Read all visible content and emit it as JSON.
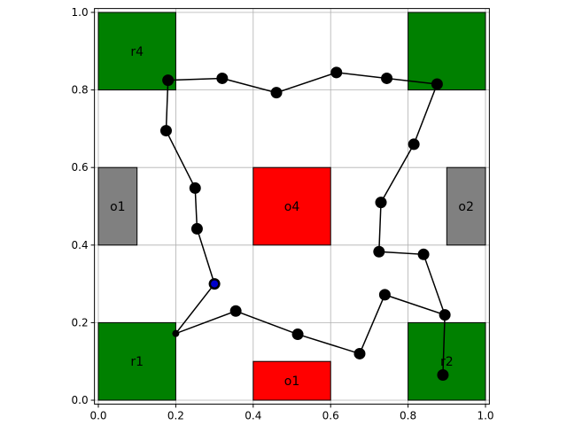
{
  "chart_data": {
    "type": "scatter",
    "title": "",
    "xlabel": "",
    "ylabel": "",
    "xlim": [
      0,
      1
    ],
    "ylim": [
      0,
      1
    ],
    "grid": true,
    "x_ticks": [
      "0.0",
      "0.2",
      "0.4",
      "0.6",
      "0.8",
      "1.0"
    ],
    "y_ticks": [
      "0.0",
      "0.2",
      "0.4",
      "0.6",
      "0.8",
      "1.0"
    ],
    "regions": [
      {
        "label": "r4",
        "x0": 0.0,
        "y0": 0.8,
        "x1": 0.2,
        "y1": 1.0,
        "color": "#008000"
      },
      {
        "label": "",
        "x0": 0.8,
        "y0": 0.8,
        "x1": 1.0,
        "y1": 1.0,
        "color": "#008000"
      },
      {
        "label": "r1",
        "x0": 0.0,
        "y0": 0.0,
        "x1": 0.2,
        "y1": 0.2,
        "color": "#008000"
      },
      {
        "label": "r2",
        "x0": 0.8,
        "y0": 0.0,
        "x1": 1.0,
        "y1": 0.2,
        "color": "#008000"
      },
      {
        "label": "o1",
        "x0": 0.0,
        "y0": 0.4,
        "x1": 0.1,
        "y1": 0.6,
        "color": "#808080"
      },
      {
        "label": "o2",
        "x0": 0.9,
        "y0": 0.4,
        "x1": 1.0,
        "y1": 0.6,
        "color": "#808080"
      },
      {
        "label": "o4",
        "x0": 0.4,
        "y0": 0.4,
        "x1": 0.6,
        "y1": 0.6,
        "color": "#ff0000"
      },
      {
        "label": "o1",
        "x0": 0.4,
        "y0": 0.0,
        "x1": 0.6,
        "y1": 0.1,
        "color": "#ff0000"
      }
    ],
    "path": {
      "x": [
        0.3,
        0.2,
        0.355,
        0.515,
        0.675,
        0.74,
        0.895,
        0.89
      ],
      "y": [
        0.3,
        0.172,
        0.23,
        0.17,
        0.12,
        0.272,
        0.22,
        0.065
      ]
    },
    "path2": {
      "x": [
        0.3,
        0.255,
        0.25,
        0.175,
        0.18,
        0.32,
        0.46,
        0.615,
        0.745,
        0.875,
        0.815,
        0.73,
        0.725,
        0.84,
        0.895
      ],
      "y": [
        0.3,
        0.442,
        0.547,
        0.695,
        0.825,
        0.83,
        0.793,
        0.845,
        0.83,
        0.815,
        0.66,
        0.51,
        0.383,
        0.376,
        0.22
      ]
    },
    "start_point": {
      "x": 0.3,
      "y": 0.3,
      "color": "#0000cc"
    },
    "small_point": {
      "x": 0.2,
      "y": 0.172
    },
    "marker_color": "#000000",
    "line_color": "#000000"
  }
}
